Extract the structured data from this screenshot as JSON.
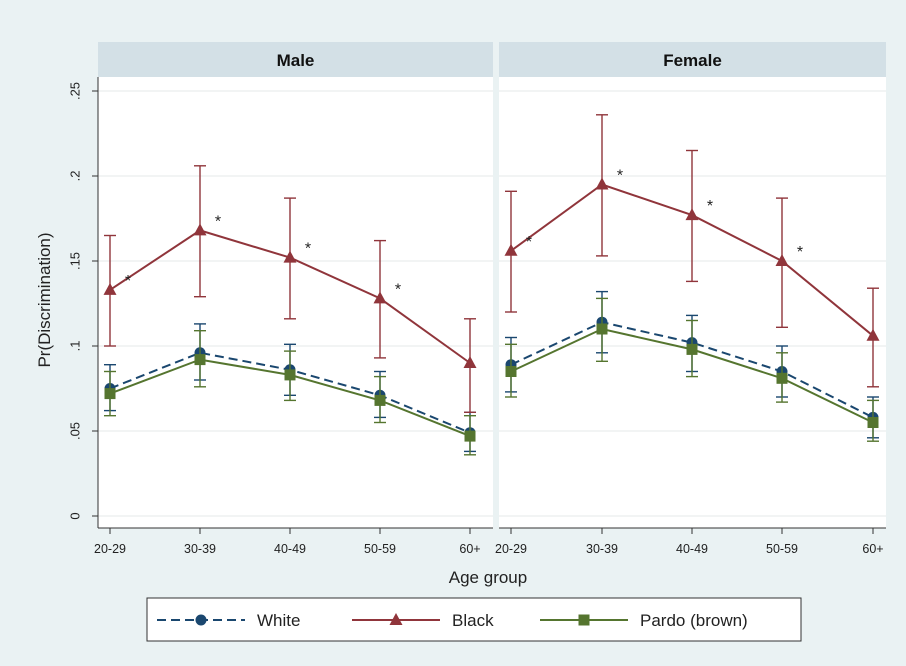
{
  "colors": {
    "outer_background": "#eaf2f3",
    "plot_background": "#ffffff",
    "strip_background": "#d3e0e6",
    "grid": "#e6e9ea",
    "axis": "#333333",
    "white_series": "#1a476f",
    "black_series": "#90353b",
    "pardo_series": "#55752f"
  },
  "chart_data": {
    "type": "line",
    "ylabel": "Pr(Discrimination)",
    "xlabel": "Age group",
    "ylim": [
      0,
      0.25
    ],
    "yticks": [
      {
        "value": 0,
        "label": "0"
      },
      {
        "value": 0.05,
        "label": ".05"
      },
      {
        "value": 0.1,
        "label": ".1"
      },
      {
        "value": 0.15,
        "label": ".15"
      },
      {
        "value": 0.2,
        "label": ".2"
      },
      {
        "value": 0.25,
        "label": ".25"
      }
    ],
    "categories": [
      "20-29",
      "30-39",
      "40-49",
      "50-59",
      "60+"
    ],
    "grid": true,
    "legend_position": "bottom",
    "significance_marker": "*",
    "panels": [
      {
        "title": "Male",
        "series": [
          {
            "name": "White",
            "marker": "circle",
            "style": "dashed",
            "values": [
              0.075,
              0.096,
              0.086,
              0.071,
              0.049
            ],
            "lower": [
              0.062,
              0.08,
              0.071,
              0.058,
              0.038
            ],
            "upper": [
              0.089,
              0.113,
              0.101,
              0.085,
              0.061
            ]
          },
          {
            "name": "Black",
            "marker": "triangle",
            "style": "solid",
            "values": [
              0.133,
              0.168,
              0.152,
              0.128,
              0.09
            ],
            "lower": [
              0.1,
              0.129,
              0.116,
              0.093,
              0.061
            ],
            "upper": [
              0.165,
              0.206,
              0.187,
              0.162,
              0.116
            ],
            "significant": [
              true,
              true,
              true,
              true,
              false
            ]
          },
          {
            "name": "Pardo (brown)",
            "marker": "square",
            "style": "solid",
            "values": [
              0.072,
              0.092,
              0.083,
              0.068,
              0.047
            ],
            "lower": [
              0.059,
              0.076,
              0.068,
              0.055,
              0.036
            ],
            "upper": [
              0.085,
              0.109,
              0.097,
              0.082,
              0.059
            ]
          }
        ]
      },
      {
        "title": "Female",
        "series": [
          {
            "name": "White",
            "marker": "circle",
            "style": "dashed",
            "values": [
              0.089,
              0.114,
              0.102,
              0.085,
              0.058
            ],
            "lower": [
              0.073,
              0.096,
              0.085,
              0.07,
              0.046
            ],
            "upper": [
              0.105,
              0.132,
              0.118,
              0.1,
              0.07
            ]
          },
          {
            "name": "Black",
            "marker": "triangle",
            "style": "solid",
            "values": [
              0.156,
              0.195,
              0.177,
              0.15,
              0.106
            ],
            "lower": [
              0.12,
              0.153,
              0.138,
              0.111,
              0.076
            ],
            "upper": [
              0.191,
              0.236,
              0.215,
              0.187,
              0.134
            ],
            "significant": [
              true,
              true,
              true,
              true,
              false
            ]
          },
          {
            "name": "Pardo (brown)",
            "marker": "square",
            "style": "solid",
            "values": [
              0.085,
              0.11,
              0.098,
              0.081,
              0.055
            ],
            "lower": [
              0.07,
              0.091,
              0.082,
              0.067,
              0.044
            ],
            "upper": [
              0.101,
              0.128,
              0.115,
              0.096,
              0.068
            ]
          }
        ]
      }
    ],
    "legend": [
      {
        "name": "White",
        "marker": "circle",
        "style": "dashed"
      },
      {
        "name": "Black",
        "marker": "triangle",
        "style": "solid"
      },
      {
        "name": "Pardo (brown)",
        "marker": "square",
        "style": "solid"
      }
    ]
  }
}
